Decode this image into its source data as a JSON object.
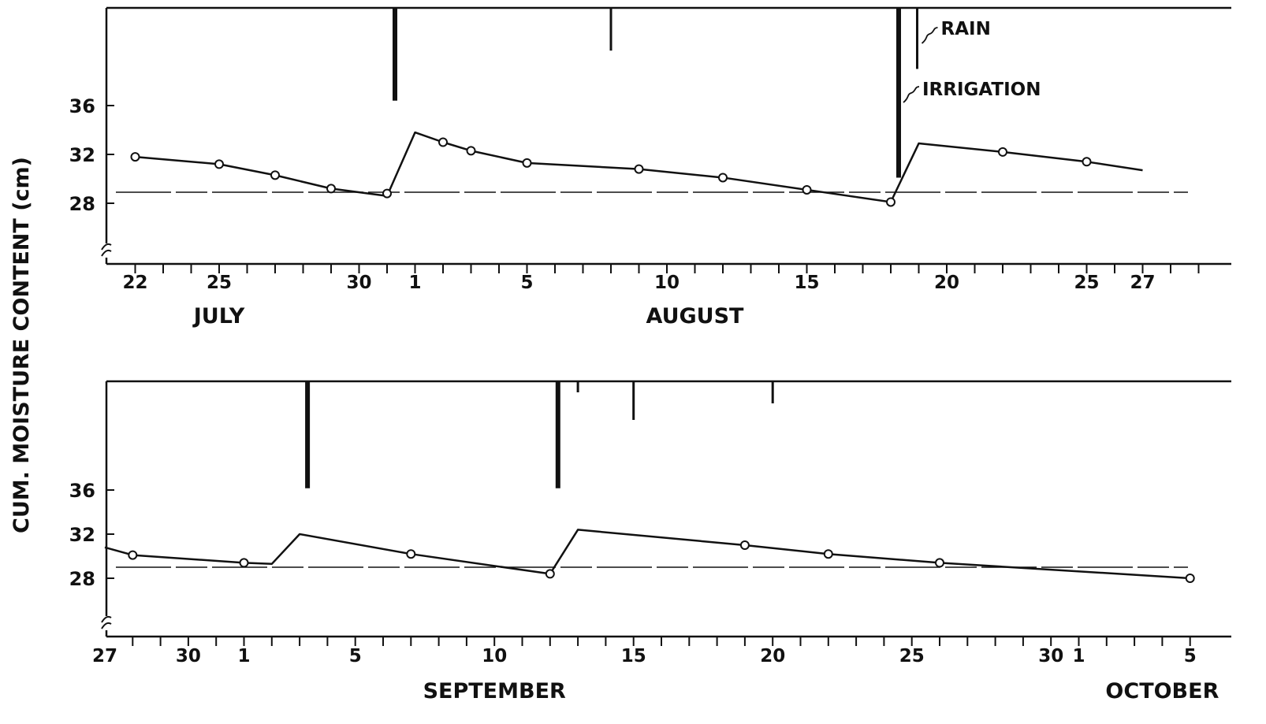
{
  "colors": {
    "ink": "#111111",
    "background": "#ffffff"
  },
  "y_axis_label": "CUM. MOISTURE CONTENT (cm)",
  "annotations": {
    "rain": "RAIN",
    "irrigation": "IRRIGATION"
  },
  "chart_data": [
    {
      "type": "line",
      "panel": "top",
      "ylabel": "CUM. MOISTURE CONTENT (cm)",
      "yticks": [
        28,
        32,
        36
      ],
      "ylim": [
        24,
        44
      ],
      "x_start_date": "1980-07-21",
      "x_end_date": "1980-08-29",
      "axis_break": true,
      "tick_labels": [
        {
          "date": "1980-07-22",
          "text": "22"
        },
        {
          "date": "1980-07-25",
          "text": "25"
        },
        {
          "date": "1980-07-30",
          "text": "30"
        },
        {
          "date": "1980-08-01",
          "text": "1"
        },
        {
          "date": "1980-08-05",
          "text": "5"
        },
        {
          "date": "1980-08-10",
          "text": "10"
        },
        {
          "date": "1980-08-15",
          "text": "15"
        },
        {
          "date": "1980-08-20",
          "text": "20"
        },
        {
          "date": "1980-08-25",
          "text": "25"
        },
        {
          "date": "1980-08-27",
          "text": "27"
        }
      ],
      "month_labels": [
        {
          "date": "1980-07-25",
          "text": "JULY"
        },
        {
          "date": "1980-08-11",
          "text": "AUGUST"
        }
      ],
      "line": [
        {
          "date": "1980-07-22",
          "value": 31.8
        },
        {
          "date": "1980-07-25",
          "value": 31.2
        },
        {
          "date": "1980-07-27",
          "value": 30.3
        },
        {
          "date": "1980-07-29",
          "value": 29.2
        },
        {
          "date": "1980-07-31",
          "value": 28.6
        },
        {
          "date": "1980-08-01",
          "value": 33.8
        },
        {
          "date": "1980-08-02",
          "value": 33.0
        },
        {
          "date": "1980-08-03",
          "value": 32.3
        },
        {
          "date": "1980-08-05",
          "value": 31.3
        },
        {
          "date": "1980-08-09",
          "value": 30.8
        },
        {
          "date": "1980-08-12",
          "value": 30.1
        },
        {
          "date": "1980-08-15",
          "value": 29.1
        },
        {
          "date": "1980-08-18",
          "value": 28.1
        },
        {
          "date": "1980-08-19",
          "value": 32.9
        },
        {
          "date": "1980-08-22",
          "value": 32.2
        },
        {
          "date": "1980-08-25",
          "value": 31.4
        },
        {
          "date": "1980-08-27",
          "value": 30.7
        }
      ],
      "observations": [
        {
          "date": "1980-07-22",
          "value": 31.8
        },
        {
          "date": "1980-07-25",
          "value": 31.2
        },
        {
          "date": "1980-07-27",
          "value": 30.3
        },
        {
          "date": "1980-07-29",
          "value": 29.2
        },
        {
          "date": "1980-07-31",
          "value": 28.8
        },
        {
          "date": "1980-08-02",
          "value": 33.0
        },
        {
          "date": "1980-08-03",
          "value": 32.3
        },
        {
          "date": "1980-08-05",
          "value": 31.3
        },
        {
          "date": "1980-08-09",
          "value": 30.8
        },
        {
          "date": "1980-08-12",
          "value": 30.1
        },
        {
          "date": "1980-08-15",
          "value": 29.1
        },
        {
          "date": "1980-08-18",
          "value": 28.1
        },
        {
          "date": "1980-08-22",
          "value": 32.2
        },
        {
          "date": "1980-08-25",
          "value": 31.4
        }
      ],
      "threshold": 28.9,
      "events": [
        {
          "kind": "irrigation",
          "date": "1980-07-31",
          "amount": 7.6
        },
        {
          "kind": "rain",
          "date": "1980-08-08",
          "amount": 3.5
        },
        {
          "kind": "irrigation",
          "date": "1980-08-18",
          "amount": 13.9
        },
        {
          "kind": "rain",
          "date": "1980-08-19",
          "amount": 5.0
        }
      ]
    },
    {
      "type": "line",
      "panel": "bottom",
      "ylabel": "CUM. MOISTURE CONTENT (cm)",
      "yticks": [
        28,
        32,
        36
      ],
      "ylim": [
        24,
        44
      ],
      "x_start_date": "1980-08-27",
      "x_end_date": "1980-10-05",
      "axis_break": true,
      "tick_labels": [
        {
          "date": "1980-08-27",
          "text": "27"
        },
        {
          "date": "1980-08-30",
          "text": "30"
        },
        {
          "date": "1980-09-01",
          "text": "1"
        },
        {
          "date": "1980-09-05",
          "text": "5"
        },
        {
          "date": "1980-09-10",
          "text": "10"
        },
        {
          "date": "1980-09-15",
          "text": "15"
        },
        {
          "date": "1980-09-20",
          "text": "20"
        },
        {
          "date": "1980-09-25",
          "text": "25"
        },
        {
          "date": "1980-09-30",
          "text": "30"
        },
        {
          "date": "1980-10-01",
          "text": "1"
        },
        {
          "date": "1980-10-05",
          "text": "5"
        }
      ],
      "month_labels": [
        {
          "date": "1980-09-10",
          "text": "SEPTEMBER"
        },
        {
          "date": "1980-10-04",
          "text": "OCTOBER"
        }
      ],
      "line": [
        {
          "date": "1980-08-27",
          "value": 30.8
        },
        {
          "date": "1980-08-28",
          "value": 30.1
        },
        {
          "date": "1980-09-01",
          "value": 29.4
        },
        {
          "date": "1980-09-02",
          "value": 29.3
        },
        {
          "date": "1980-09-03",
          "value": 32.0
        },
        {
          "date": "1980-09-07",
          "value": 30.2
        },
        {
          "date": "1980-09-12",
          "value": 28.4
        },
        {
          "date": "1980-09-13",
          "value": 32.4
        },
        {
          "date": "1980-09-19",
          "value": 31.0
        },
        {
          "date": "1980-09-22",
          "value": 30.2
        },
        {
          "date": "1980-09-26",
          "value": 29.4
        },
        {
          "date": "1980-10-05",
          "value": 28.0
        }
      ],
      "observations": [
        {
          "date": "1980-08-28",
          "value": 30.1
        },
        {
          "date": "1980-09-01",
          "value": 29.4
        },
        {
          "date": "1980-09-07",
          "value": 30.2
        },
        {
          "date": "1980-09-12",
          "value": 28.4
        },
        {
          "date": "1980-09-19",
          "value": 31.0
        },
        {
          "date": "1980-09-22",
          "value": 30.2
        },
        {
          "date": "1980-09-26",
          "value": 29.4
        },
        {
          "date": "1980-10-05",
          "value": 28.0
        }
      ],
      "threshold": 29.0,
      "events": [
        {
          "kind": "irrigation",
          "date": "1980-09-03",
          "amount": 9.7
        },
        {
          "kind": "irrigation",
          "date": "1980-09-12",
          "amount": 9.7
        },
        {
          "kind": "rain",
          "date": "1980-09-13",
          "amount": 1.0
        },
        {
          "kind": "rain",
          "date": "1980-09-15",
          "amount": 3.5
        },
        {
          "kind": "rain",
          "date": "1980-09-20",
          "amount": 2.0
        }
      ]
    }
  ]
}
